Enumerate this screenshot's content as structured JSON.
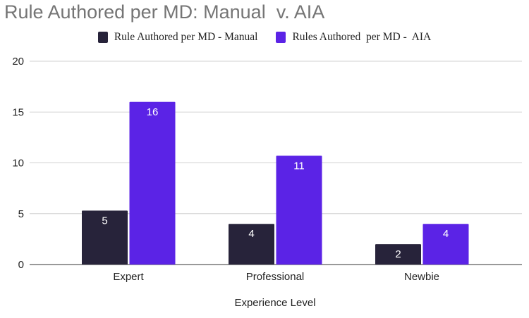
{
  "chart_data": {
    "type": "bar",
    "title": "Rule Authored per MD: Manual  v. AIA",
    "xlabel": "Experience Level",
    "ylabel": "",
    "categories": [
      "Expert",
      "Professional",
      "Newbie"
    ],
    "series": [
      {
        "name": "Rule Authored per MD - Manual",
        "color": "#27233a",
        "values": [
          5.3,
          4,
          2
        ],
        "labels": [
          "5",
          "4",
          "2"
        ]
      },
      {
        "name": "Rules Authored  per MD -  AIA",
        "color": "#5b23e6",
        "values": [
          16,
          10.7,
          4
        ],
        "labels": [
          "16",
          "11",
          "4"
        ]
      }
    ],
    "ylim": [
      0,
      20
    ],
    "yticks": [
      "0",
      "5",
      "10",
      "15",
      "20"
    ],
    "grid": true,
    "legend_position": "top"
  }
}
